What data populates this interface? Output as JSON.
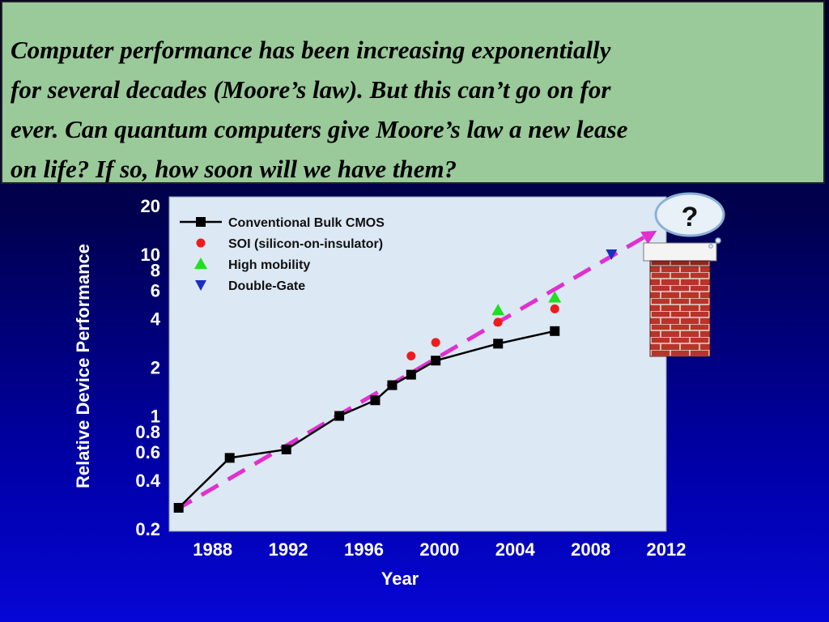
{
  "slide": {
    "banner_lines": [
      "Computer performance has been increasing exponentially",
      "for several decades (Moore’s law).  But this can’t go on for",
      "ever.  Can quantum computers give Moore’s law a new lease",
      "on life?  If so, how soon will we have them?"
    ],
    "question_mark": "?"
  },
  "colors": {
    "banner_bg": "#9ac99a",
    "plot_bg": "#dce8f4",
    "cmos": "#000000",
    "soi": "#ee1c1c",
    "high_mobility": "#22dd22",
    "double_gate": "#1830c0",
    "trend": "#e030d0",
    "brick": "#b8342a"
  },
  "chart_data": {
    "type": "line",
    "xlabel": "Year",
    "ylabel": "Relative Device Performance",
    "xlim": [
      1985.7,
      2012
    ],
    "ylim": [
      0.2,
      20
    ],
    "y_scale": "log",
    "x_ticks": [
      "1988",
      "1992",
      "1996",
      "2000",
      "2004",
      "2008",
      "2012"
    ],
    "y_ticks": [
      "0.2",
      "0.4",
      "0.6",
      "0.8",
      "1",
      "2",
      "4",
      "6",
      "8",
      "10",
      "20"
    ],
    "grid": false,
    "legend_position": "top-left",
    "series": [
      {
        "name": "Conventional Bulk CMOS",
        "marker": "square",
        "line": true,
        "x": [
          1986.2,
          1988.9,
          1991.9,
          1994.7,
          1996.6,
          1997.5,
          1998.5,
          1999.8,
          2003.1,
          2006.1
        ],
        "y": [
          0.27,
          0.55,
          0.62,
          1.0,
          1.25,
          1.55,
          1.8,
          2.2,
          2.8,
          3.35
        ]
      },
      {
        "name": "SOI (silicon-on-insulator)",
        "marker": "circle",
        "line": false,
        "x": [
          1998.5,
          1999.8,
          2003.1,
          2006.1
        ],
        "y": [
          2.35,
          2.85,
          3.8,
          4.6
        ]
      },
      {
        "name": "High mobility",
        "marker": "triangle-up",
        "line": false,
        "x": [
          2003.1,
          2006.1
        ],
        "y": [
          4.5,
          5.4
        ]
      },
      {
        "name": "Double-Gate",
        "marker": "triangle-down",
        "line": false,
        "x": [
          2009.1
        ],
        "y": [
          10.0
        ]
      }
    ],
    "trendline": {
      "style": "dashed-arrow",
      "x": [
        1986.0,
        2011.5
      ],
      "y": [
        0.26,
        14.0
      ]
    }
  }
}
